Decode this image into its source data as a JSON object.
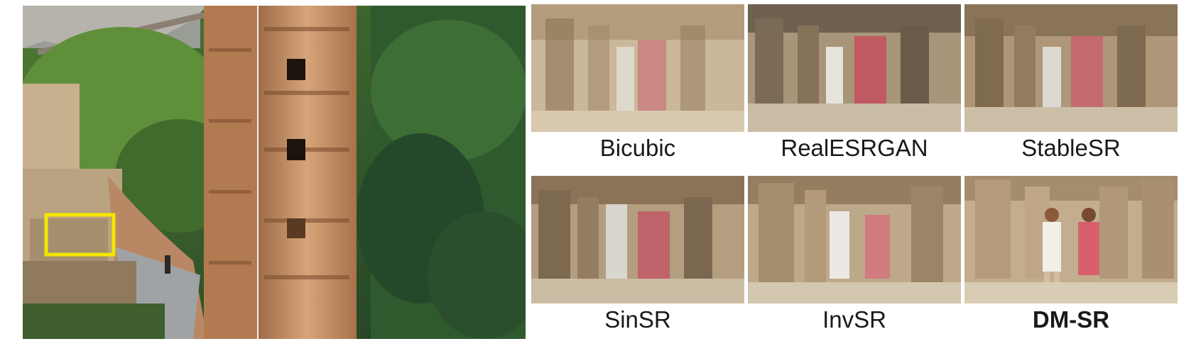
{
  "main_image": {
    "highlight_color": "#f5e600"
  },
  "results": [
    {
      "label": "Bicubic",
      "emphasized": false
    },
    {
      "label": "RealESRGAN",
      "emphasized": false
    },
    {
      "label": "StableSR",
      "emphasized": false
    },
    {
      "label": "SinSR",
      "emphasized": false
    },
    {
      "label": "InvSR",
      "emphasized": false
    },
    {
      "label": "DM-SR",
      "emphasized": true
    }
  ]
}
